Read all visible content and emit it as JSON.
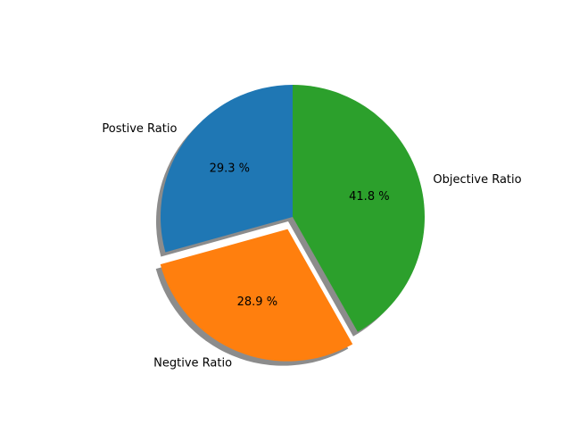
{
  "chart_data": {
    "type": "pie",
    "title": "",
    "start_angle": 90,
    "direction": "counterclockwise",
    "shadow": true,
    "slices": [
      {
        "label": "Postive Ratio",
        "value": 29.3,
        "pct_label": "29.3 %",
        "color": "#1f77b4",
        "explode": 0
      },
      {
        "label": "Negtive Ratio",
        "value": 28.9,
        "pct_label": "28.9 %",
        "color": "#ff7f0e",
        "explode": 0.1
      },
      {
        "label": "Objective Ratio",
        "value": 41.8,
        "pct_label": "41.8 %",
        "color": "#2ca02c",
        "explode": 0
      }
    ]
  }
}
